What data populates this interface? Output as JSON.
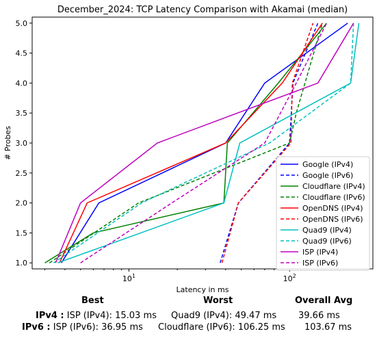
{
  "chart_data": {
    "type": "line",
    "title": "December_2024: TCP Latency Comparison with Akamai (median)",
    "xlabel": "Latency in ms",
    "ylabel": "# Probes",
    "x_scale": "log",
    "xlim": [
      2.5,
      330
    ],
    "ylim": [
      0.9,
      5.1
    ],
    "x_ticks": [
      {
        "value": 10,
        "label": "10^1"
      },
      {
        "value": 100,
        "label": "10^2"
      }
    ],
    "x_tick_labels": {
      "10": "10",
      "100": "10"
    },
    "x_tick_exponents": {
      "10": "1",
      "100": "2"
    },
    "y_ticks": [
      "1.0",
      "1.5",
      "2.0",
      "2.5",
      "3.0",
      "3.5",
      "4.0",
      "4.5",
      "5.0"
    ],
    "grid": false,
    "legend_position": "lower-right",
    "series": [
      {
        "name": "Google (IPv4)",
        "color": "#0000ff",
        "dash": false,
        "points": [
          [
            3.8,
            1.0
          ],
          [
            6.5,
            2.0
          ],
          [
            40,
            3.0
          ],
          [
            70,
            4.0
          ],
          [
            230,
            5.0
          ]
        ]
      },
      {
        "name": "Google (IPv6)",
        "color": "#0000ff",
        "dash": true,
        "points": [
          [
            37,
            1.0
          ],
          [
            48,
            2.0
          ],
          [
            100,
            3.0
          ],
          [
            105,
            4.0
          ],
          [
            150,
            5.0
          ]
        ]
      },
      {
        "name": "Cloudflare (IPv4)",
        "color": "#008000",
        "dash": false,
        "points": [
          [
            3.0,
            1.0
          ],
          [
            6.0,
            1.5
          ],
          [
            39,
            2.0
          ],
          [
            41,
            3.0
          ],
          [
            85,
            4.0
          ],
          [
            170,
            5.0
          ]
        ]
      },
      {
        "name": "Cloudflare (IPv6)",
        "color": "#008000",
        "dash": true,
        "points": [
          [
            3.2,
            1.0
          ],
          [
            11.5,
            2.0
          ],
          [
            100,
            3.0
          ],
          [
            110,
            3.5
          ],
          [
            160,
            5.0
          ]
        ]
      },
      {
        "name": "OpenDNS (IPv4)",
        "color": "#ff0000",
        "dash": false,
        "points": [
          [
            3.7,
            1.0
          ],
          [
            5.5,
            2.0
          ],
          [
            40,
            3.0
          ],
          [
            90,
            4.0
          ],
          [
            160,
            5.0
          ]
        ]
      },
      {
        "name": "OpenDNS (IPv6)",
        "color": "#ff0000",
        "dash": true,
        "points": [
          [
            38,
            1.0
          ],
          [
            48,
            2.0
          ],
          [
            102,
            3.0
          ],
          [
            104,
            4.0
          ],
          [
            140,
            5.0
          ]
        ]
      },
      {
        "name": "Quad9 (IPv4)",
        "color": "#00bfbf",
        "dash": false,
        "points": [
          [
            3.6,
            1.0
          ],
          [
            39,
            2.0
          ],
          [
            49,
            3.0
          ],
          [
            240,
            4.0
          ],
          [
            270,
            5.0
          ]
        ]
      },
      {
        "name": "Quad9 (IPv6)",
        "color": "#00bfbf",
        "dash": true,
        "points": [
          [
            3.4,
            1.0
          ],
          [
            12,
            2.0
          ],
          [
            75,
            3.0
          ],
          [
            240,
            4.0
          ],
          [
            250,
            5.0
          ]
        ]
      },
      {
        "name": "ISP (IPv4)",
        "color": "#bf00bf",
        "dash": false,
        "points": [
          [
            3.5,
            1.0
          ],
          [
            5.0,
            2.0
          ],
          [
            15.03,
            3.0
          ],
          [
            150,
            4.0
          ],
          [
            250,
            5.0
          ]
        ]
      },
      {
        "name": "ISP (IPv6)",
        "color": "#bf00bf",
        "dash": true,
        "points": [
          [
            5.0,
            1.0
          ],
          [
            18.5,
            2.0
          ],
          [
            70,
            3.0
          ],
          [
            110,
            4.0
          ],
          [
            170,
            5.0
          ]
        ]
      }
    ]
  },
  "summary": {
    "headers": {
      "best": "Best",
      "worst": "Worst",
      "avg": "Overall Avg"
    },
    "rows": [
      {
        "label": "IPv4 :",
        "best": "ISP (IPv4): 15.03 ms",
        "worst": "Quad9 (IPv4): 49.47 ms",
        "avg": "39.66 ms"
      },
      {
        "label": "IPv6 :",
        "best": "ISP (IPv6): 36.95 ms",
        "worst": "Cloudflare (IPv6): 106.25 ms",
        "avg": "103.67 ms"
      }
    ]
  }
}
